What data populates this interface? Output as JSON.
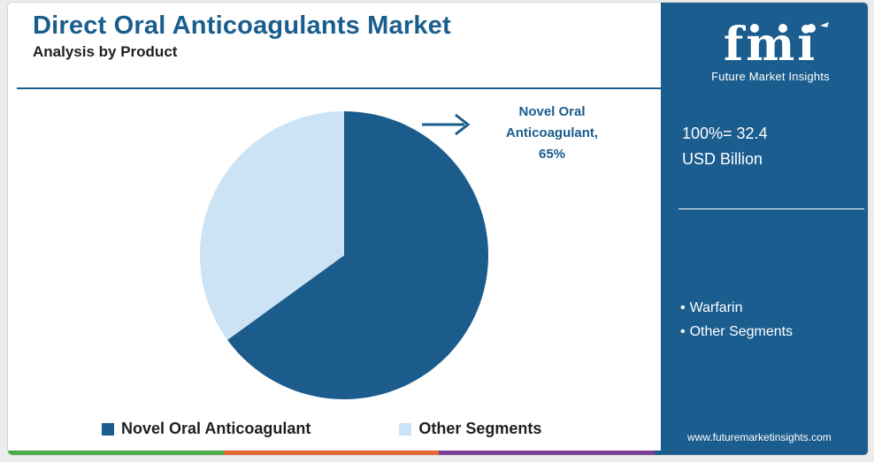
{
  "header": {
    "title": "Direct Oral Anticoagulants Market",
    "subtitle": "Analysis by Product"
  },
  "chart_data": {
    "type": "pie",
    "title": "Direct Oral Anticoagulants Market",
    "subtitle": "Analysis by Product",
    "categories": [
      "Novel Oral Anticoagulant",
      "Other Segments"
    ],
    "values": [
      65,
      35
    ],
    "unit": "%",
    "colors": [
      "#1b5c8d",
      "#cbe3f4"
    ],
    "callout": {
      "label": "Novel Oral Anticoagulant,",
      "value": "65%"
    },
    "legend": {
      "placement": "bottom",
      "items": [
        "Novel Oral Anticoagulant",
        "Other Segments"
      ]
    }
  },
  "panel": {
    "brand": "fmi",
    "brand_tagline": "Future Market Insights",
    "total_line1": "100%= 32.4",
    "total_line2": "USD Billion",
    "bullets": [
      "Warfarin",
      "Other Segments"
    ],
    "url": "www.futuremarketinsights.com",
    "background_color": "#1b5d8e"
  },
  "colors": {
    "accent": "#1b5c8d",
    "light": "#cbe3f4",
    "bottom_bar": [
      "#4bab49",
      "#e3692e",
      "#7b3f98",
      "#1b5c8d"
    ]
  }
}
